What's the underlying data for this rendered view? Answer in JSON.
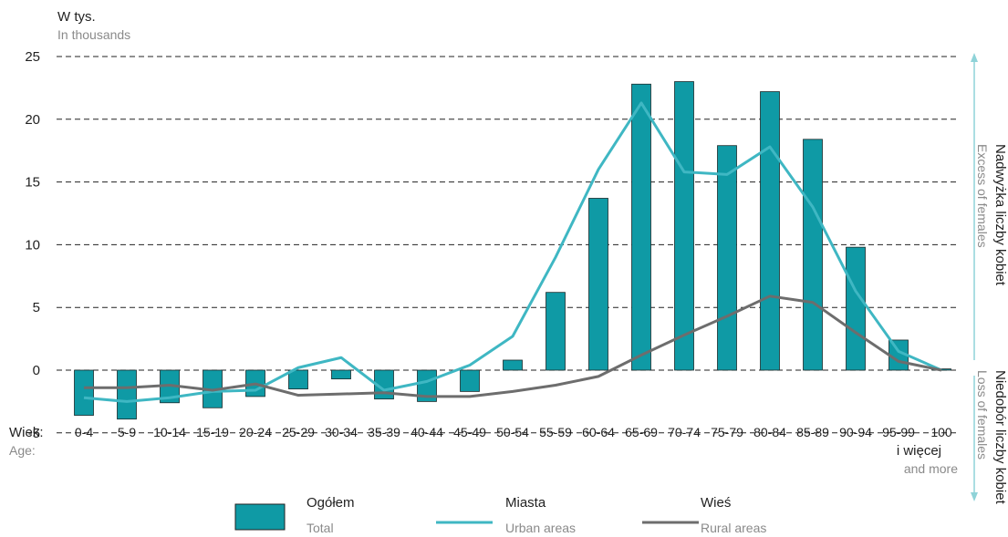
{
  "chart_data": {
    "type": "bar",
    "ylabel": "W tys.",
    "ylabel_en": "In thousands",
    "xlabel": "Wiek:",
    "xlabel_en": "Age:",
    "ylim": [
      -5,
      25
    ],
    "yticks": [
      25,
      20,
      15,
      10,
      5,
      0,
      -5
    ],
    "grid": true,
    "legend_position": "bottom",
    "categories": [
      "0-4",
      "5-9",
      "10-14",
      "15-19",
      "20-24",
      "25-29",
      "30-34",
      "35-39",
      "40-44",
      "45-49",
      "50-54",
      "55-59",
      "60-64",
      "65-69",
      "70-74",
      "75-79",
      "80-84",
      "85-89",
      "90-94",
      "95-99",
      "100"
    ],
    "last_category_extra": "i więcej",
    "last_category_extra_en": "and more",
    "series": [
      {
        "name": "Ogółem",
        "name_en": "Total",
        "type": "bar",
        "color": "#0f9aa5",
        "values": [
          -3.6,
          -3.9,
          -2.6,
          -3.0,
          -2.1,
          -1.5,
          -0.7,
          -2.3,
          -2.5,
          -1.7,
          0.8,
          6.2,
          13.7,
          22.8,
          23.0,
          17.9,
          22.2,
          18.4,
          9.8,
          2.4,
          0.1
        ]
      },
      {
        "name": "Miasta",
        "name_en": "Urban areas",
        "type": "line",
        "color": "#3fb7c3",
        "values": [
          -2.2,
          -2.5,
          -2.2,
          -1.7,
          -1.6,
          0.2,
          1.0,
          -1.6,
          -0.9,
          0.4,
          2.7,
          9.0,
          16.0,
          21.3,
          15.8,
          15.6,
          17.8,
          13.0,
          6.3,
          1.5,
          0.0
        ]
      },
      {
        "name": "Wieś",
        "name_en": "Rural areas",
        "type": "line",
        "color": "#6d6d6d",
        "values": [
          -1.4,
          -1.4,
          -1.2,
          -1.6,
          -1.1,
          -2.0,
          -1.9,
          -1.8,
          -2.1,
          -2.1,
          -1.7,
          -1.2,
          -0.5,
          1.2,
          2.8,
          4.3,
          5.9,
          5.4,
          3.0,
          0.7,
          0.0
        ]
      }
    ],
    "right_annotations": {
      "upper": "Nadwyżka liczby kobiet",
      "upper_en": "Excess of females",
      "lower": "Niedobór liczby kobiet",
      "lower_en": "Loss of females"
    },
    "colors": {
      "grid": "#222222",
      "axis": "#222222",
      "secondary_text": "#8a8a8a",
      "arrow": "#8fd3d8"
    }
  }
}
